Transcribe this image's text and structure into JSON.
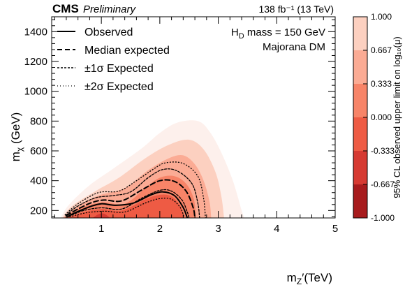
{
  "header": {
    "cms": "CMS",
    "preliminary": "Preliminary",
    "lumi": "138 fb⁻¹ (13 TeV)"
  },
  "annotations": {
    "line1": "H_D mass = 150 GeV",
    "line2": "Majorana DM"
  },
  "legend": [
    {
      "label": "Observed",
      "style": "solid"
    },
    {
      "label": "Median expected",
      "style": "dashed"
    },
    {
      "label": "±1σ Expected",
      "style": "dashed-fine"
    },
    {
      "label": "±2σ Expected",
      "style": "dotted"
    }
  ],
  "colorbar": {
    "label": "95% CL observed upper limit on log₁₀(μ)",
    "ticks": [
      "1.000",
      "0.667",
      "0.333",
      "0.000",
      "-0.333",
      "-0.667",
      "-1.000"
    ],
    "colors": [
      "#fdf0ec",
      "#fcd0c0",
      "#fbab94",
      "#f78468",
      "#ee5b44",
      "#d63a32",
      "#a71b1d",
      "#7b0f13"
    ]
  },
  "chart_data": {
    "type": "heatmap",
    "xlabel": "m_Z'(TeV)",
    "ylabel": "m_χ (GeV)",
    "xlim": [
      0.15,
      5.0
    ],
    "ylim": [
      150,
      1500
    ],
    "xticks": [
      1,
      2,
      3,
      4,
      5
    ],
    "yticks": [
      200,
      400,
      600,
      800,
      1000,
      1200,
      1400
    ],
    "zlim": [
      -1.0,
      1.0
    ],
    "regions": [
      {
        "level": 1.0,
        "points": [
          [
            0.3,
            150
          ],
          [
            0.45,
            240
          ],
          [
            0.8,
            370
          ],
          [
            1.2,
            480
          ],
          [
            1.7,
            620
          ],
          [
            2.0,
            720
          ],
          [
            2.3,
            790
          ],
          [
            2.65,
            800
          ],
          [
            2.85,
            730
          ],
          [
            3.05,
            590
          ],
          [
            3.25,
            400
          ],
          [
            3.4,
            200
          ],
          [
            3.45,
            150
          ]
        ]
      },
      {
        "level": 0.667,
        "points": [
          [
            0.33,
            150
          ],
          [
            0.5,
            230
          ],
          [
            0.9,
            330
          ],
          [
            1.3,
            420
          ],
          [
            1.75,
            550
          ],
          [
            2.15,
            640
          ],
          [
            2.5,
            675
          ],
          [
            2.75,
            610
          ],
          [
            2.95,
            460
          ],
          [
            3.05,
            300
          ],
          [
            3.1,
            150
          ]
        ]
      },
      {
        "level": 0.333,
        "points": [
          [
            0.35,
            150
          ],
          [
            0.55,
            220
          ],
          [
            0.95,
            300
          ],
          [
            1.4,
            350
          ],
          [
            1.8,
            470
          ],
          [
            2.15,
            550
          ],
          [
            2.4,
            570
          ],
          [
            2.6,
            510
          ],
          [
            2.75,
            400
          ],
          [
            2.85,
            260
          ],
          [
            2.88,
            150
          ]
        ]
      },
      {
        "level": 0.0,
        "points": [
          [
            0.37,
            150
          ],
          [
            0.6,
            210
          ],
          [
            1.0,
            255
          ],
          [
            1.4,
            245
          ],
          [
            1.75,
            350
          ],
          [
            2.0,
            420
          ],
          [
            2.25,
            430
          ],
          [
            2.45,
            380
          ],
          [
            2.58,
            280
          ],
          [
            2.62,
            150
          ]
        ]
      },
      {
        "level": -0.333,
        "points": [
          [
            0.4,
            150
          ],
          [
            0.7,
            190
          ],
          [
            1.0,
            210
          ],
          [
            1.35,
            200
          ],
          [
            1.75,
            275
          ],
          [
            2.0,
            305
          ],
          [
            2.2,
            295
          ],
          [
            2.35,
            230
          ],
          [
            2.42,
            150
          ]
        ]
      },
      {
        "level": -0.667,
        "points": [
          [
            0.85,
            150
          ],
          [
            0.95,
            175
          ],
          [
            1.05,
            178
          ],
          [
            1.15,
            150
          ]
        ]
      }
    ],
    "contours": [
      {
        "name": "Observed",
        "style": "solid",
        "points": [
          [
            0.42,
            158
          ],
          [
            0.55,
            185
          ],
          [
            0.8,
            225
          ],
          [
            1.0,
            245
          ],
          [
            1.25,
            235
          ],
          [
            1.55,
            250
          ],
          [
            1.85,
            305
          ],
          [
            2.05,
            325
          ],
          [
            2.25,
            300
          ],
          [
            2.4,
            220
          ],
          [
            2.47,
            150
          ]
        ]
      },
      {
        "name": "Median expected",
        "style": "dashed",
        "points": [
          [
            0.4,
            165
          ],
          [
            0.6,
            210
          ],
          [
            0.85,
            255
          ],
          [
            1.05,
            270
          ],
          [
            1.35,
            265
          ],
          [
            1.7,
            340
          ],
          [
            2.0,
            400
          ],
          [
            2.25,
            395
          ],
          [
            2.45,
            330
          ],
          [
            2.57,
            220
          ],
          [
            2.6,
            150
          ]
        ]
      },
      {
        "name": "+1σ Expected",
        "style": "dashed-fine",
        "points": [
          [
            0.39,
            168
          ],
          [
            0.6,
            230
          ],
          [
            0.9,
            285
          ],
          [
            1.2,
            300
          ],
          [
            1.5,
            325
          ],
          [
            1.8,
            420
          ],
          [
            2.05,
            475
          ],
          [
            2.3,
            465
          ],
          [
            2.55,
            380
          ],
          [
            2.65,
            250
          ],
          [
            2.68,
            150
          ]
        ]
      },
      {
        "name": "-1σ Expected",
        "style": "dashed-fine",
        "points": [
          [
            0.44,
            160
          ],
          [
            0.7,
            200
          ],
          [
            1.0,
            218
          ],
          [
            1.35,
            210
          ],
          [
            1.7,
            285
          ],
          [
            2.0,
            335
          ],
          [
            2.2,
            330
          ],
          [
            2.38,
            270
          ],
          [
            2.47,
            190
          ],
          [
            2.5,
            150
          ]
        ]
      },
      {
        "name": "+2σ Expected",
        "style": "dotted",
        "points": [
          [
            0.38,
            172
          ],
          [
            0.6,
            245
          ],
          [
            0.95,
            320
          ],
          [
            1.3,
            330
          ],
          [
            1.6,
            400
          ],
          [
            1.9,
            480
          ],
          [
            2.1,
            520
          ],
          [
            2.4,
            515
          ],
          [
            2.65,
            430
          ],
          [
            2.75,
            280
          ],
          [
            2.78,
            150
          ]
        ]
      },
      {
        "name": "-2σ Expected",
        "style": "dotted",
        "points": [
          [
            0.46,
            158
          ],
          [
            0.75,
            185
          ],
          [
            1.05,
            195
          ],
          [
            1.4,
            190
          ],
          [
            1.75,
            250
          ],
          [
            2.0,
            280
          ],
          [
            2.2,
            275
          ],
          [
            2.35,
            220
          ],
          [
            2.42,
            150
          ]
        ]
      }
    ]
  }
}
